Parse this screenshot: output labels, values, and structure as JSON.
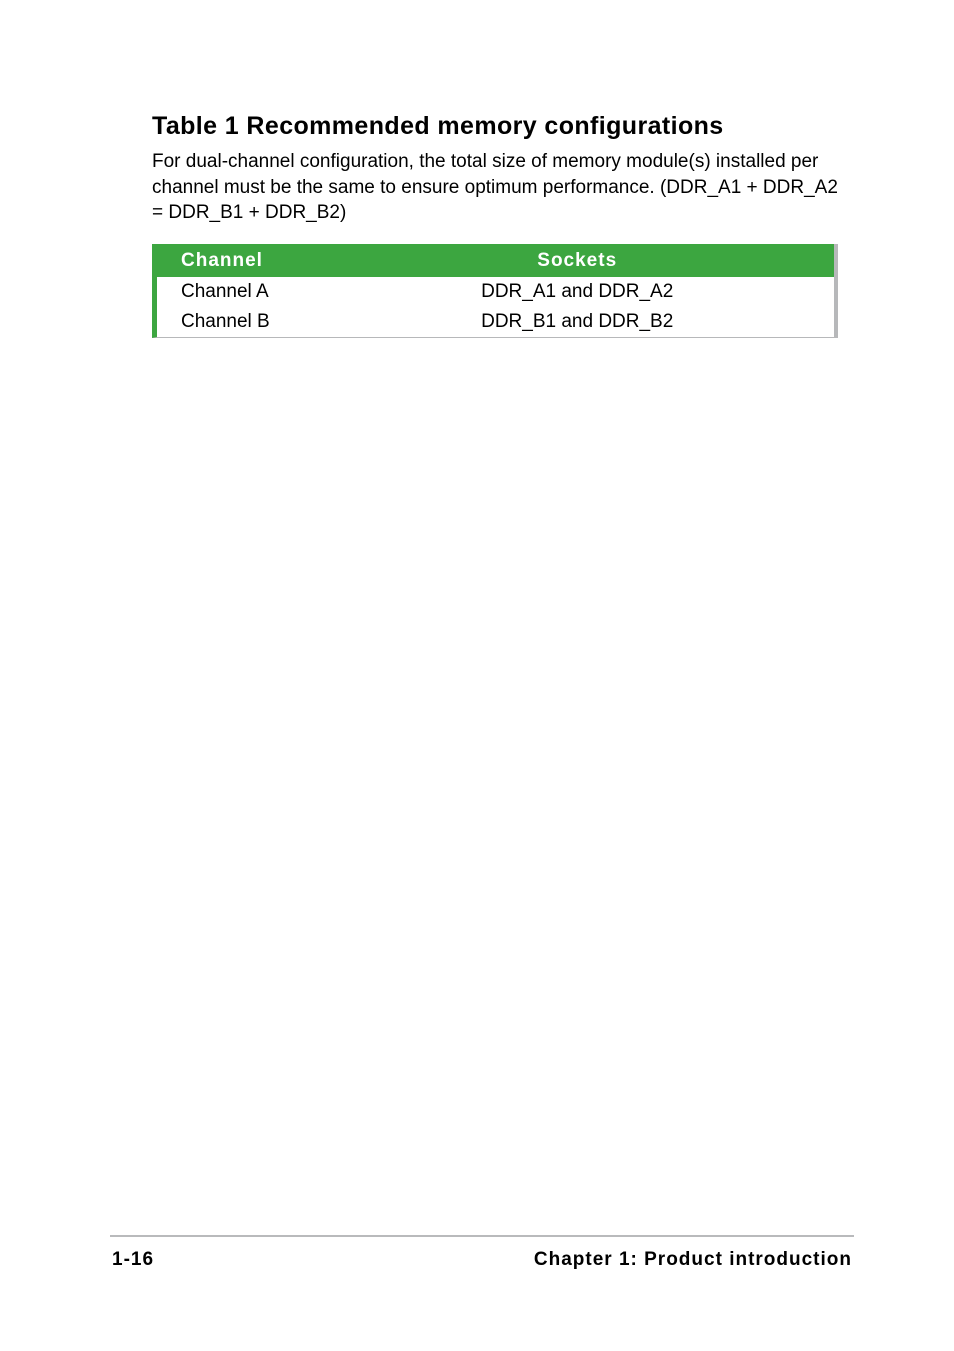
{
  "title": "Table 1 Recommended memory configurations",
  "description": "For dual-channel configuration, the total size of memory module(s) installed per channel must be the same to ensure optimum performance. (DDR_A1 + DDR_A2 = DDR_B1 + DDR_B2)",
  "table": {
    "columns": [
      "Channel",
      "Sockets"
    ],
    "rows": [
      [
        "Channel A",
        "DDR_A1 and DDR_A2"
      ],
      [
        "Channel B",
        "DDR_B1 and DDR_B2"
      ]
    ],
    "header_bg_color": "#3ca640",
    "header_text_color": "#ffffff",
    "border_left_color": "#3ca640",
    "border_right_color": "#b7b8ba"
  },
  "footer": {
    "page_number": "1-16",
    "chapter": "Chapter 1: Product introduction",
    "line_color": "#b9babc"
  }
}
